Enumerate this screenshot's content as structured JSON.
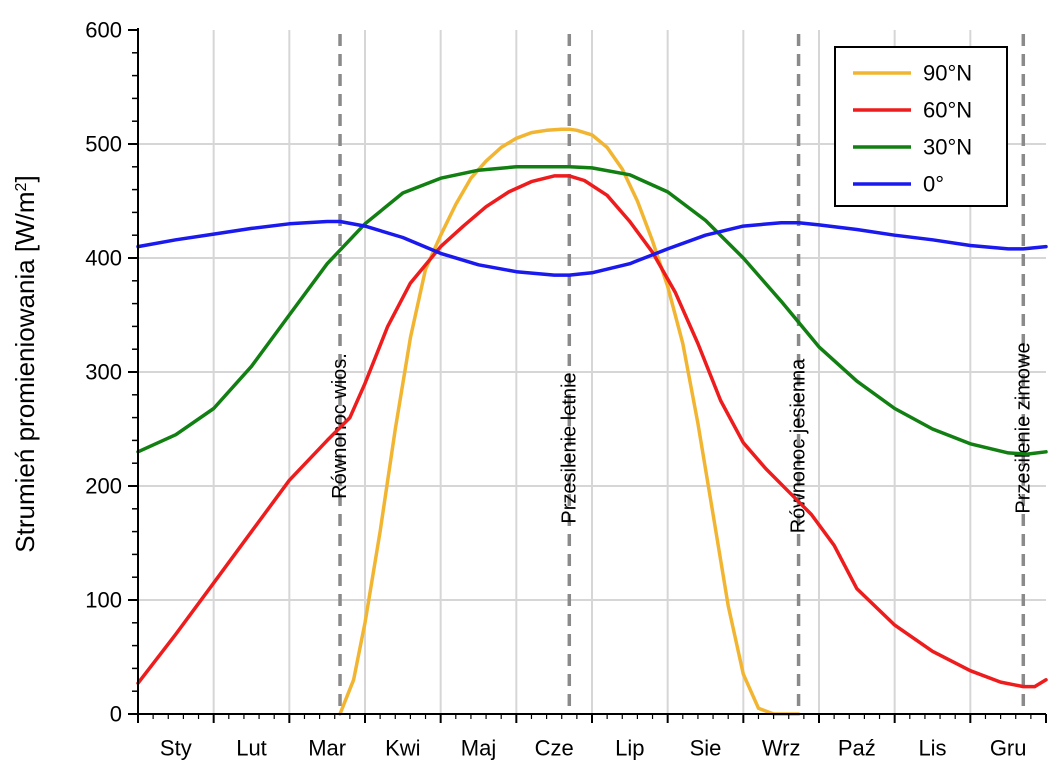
{
  "chart_data": {
    "type": "line",
    "title": "",
    "xlabel": "",
    "ylabel": "Strumień promieniowania [W/m²]",
    "ylabel_main": "Strumień promieniowania [W/m",
    "ylabel_sup": "2",
    "ylabel_tail": "]",
    "ylim": [
      0,
      600
    ],
    "yticks": [
      "0",
      "100",
      "200",
      "300",
      "400",
      "500",
      "600"
    ],
    "xlim": [
      0,
      12
    ],
    "x_unit": "months from 1 January",
    "categories": [
      "Sty",
      "Lut",
      "Mar",
      "Kwi",
      "Maj",
      "Cze",
      "Lip",
      "Sie",
      "Wrz",
      "Paź",
      "Lis",
      "Gru"
    ],
    "grid": true,
    "legend_position": "top-right",
    "events": [
      {
        "label": "Równonoc wios.",
        "x": 2.67
      },
      {
        "label": "Przesilenie letnie",
        "x": 5.7
      },
      {
        "label": "Równonoc jesienna",
        "x": 8.73
      },
      {
        "label": "Przesilenie zimowe",
        "x": 11.7
      }
    ],
    "series": [
      {
        "name": "90°N",
        "color": "#f2b531",
        "x": [
          2.67,
          2.85,
          3.0,
          3.2,
          3.4,
          3.6,
          3.8,
          4.0,
          4.2,
          4.4,
          4.6,
          4.8,
          5.0,
          5.2,
          5.4,
          5.6,
          5.7,
          5.8,
          6.0,
          6.2,
          6.4,
          6.6,
          6.8,
          7.0,
          7.2,
          7.4,
          7.6,
          7.8,
          8.0,
          8.2,
          8.4,
          8.55,
          8.73
        ],
        "values": [
          0,
          30,
          80,
          160,
          250,
          330,
          390,
          420,
          447,
          470,
          485,
          497,
          505,
          510,
          512,
          513,
          513,
          512,
          508,
          497,
          478,
          450,
          415,
          375,
          325,
          255,
          175,
          95,
          35,
          5,
          0,
          0,
          0
        ]
      },
      {
        "name": "60°N",
        "color": "#ee1c1c",
        "x": [
          0.0,
          0.5,
          1.0,
          1.5,
          2.0,
          2.5,
          2.8,
          3.0,
          3.3,
          3.6,
          4.0,
          4.3,
          4.6,
          4.9,
          5.2,
          5.5,
          5.7,
          5.9,
          6.2,
          6.5,
          6.8,
          7.1,
          7.4,
          7.7,
          8.0,
          8.3,
          8.6,
          8.9,
          9.2,
          9.5,
          10.0,
          10.5,
          11.0,
          11.4,
          11.7,
          11.85,
          12.0
        ],
        "values": [
          27,
          70,
          115,
          160,
          205,
          240,
          260,
          290,
          340,
          378,
          410,
          428,
          445,
          458,
          467,
          472,
          472,
          468,
          455,
          432,
          405,
          370,
          325,
          275,
          238,
          215,
          195,
          175,
          148,
          110,
          78,
          55,
          38,
          28,
          24,
          24,
          30
        ]
      },
      {
        "name": "30°N",
        "color": "#117f11",
        "x": [
          0.0,
          0.5,
          1.0,
          1.5,
          2.0,
          2.5,
          3.0,
          3.5,
          4.0,
          4.5,
          5.0,
          5.5,
          5.7,
          6.0,
          6.5,
          7.0,
          7.5,
          8.0,
          8.5,
          9.0,
          9.5,
          10.0,
          10.5,
          11.0,
          11.5,
          11.75,
          12.0
        ],
        "values": [
          230,
          245,
          268,
          305,
          350,
          395,
          430,
          457,
          470,
          477,
          480,
          480,
          480,
          479,
          473,
          458,
          433,
          400,
          362,
          322,
          292,
          268,
          250,
          237,
          229,
          228,
          230
        ]
      },
      {
        "name": "0°",
        "color": "#1a1aee",
        "x": [
          0.0,
          0.5,
          1.0,
          1.5,
          2.0,
          2.5,
          2.67,
          3.0,
          3.5,
          4.0,
          4.5,
          5.0,
          5.5,
          5.7,
          6.0,
          6.5,
          7.0,
          7.5,
          8.0,
          8.5,
          8.73,
          9.0,
          9.5,
          10.0,
          10.5,
          11.0,
          11.5,
          11.7,
          12.0
        ],
        "values": [
          410,
          416,
          421,
          426,
          430,
          432,
          432,
          428,
          418,
          404,
          394,
          388,
          385,
          385,
          387,
          395,
          408,
          420,
          428,
          431,
          431,
          429,
          425,
          420,
          416,
          411,
          408,
          408,
          410
        ]
      }
    ]
  }
}
